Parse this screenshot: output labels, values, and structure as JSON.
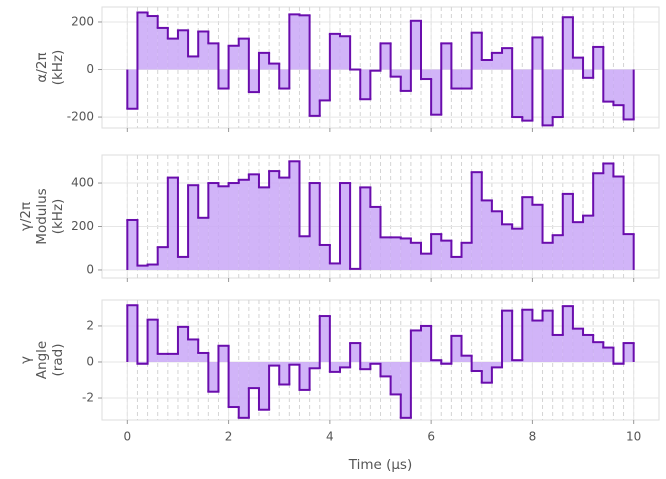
{
  "chart_data": [
    {
      "type": "step",
      "ylabel": [
        "α/2π",
        "(kHz)"
      ],
      "color": "#6a0dad",
      "fill": "#c9a7f7",
      "grid": true,
      "xlim": [
        -0.5,
        10.5
      ],
      "xticks": [
        0,
        2,
        4,
        6,
        8,
        10
      ],
      "ylim": [
        -246,
        263
      ],
      "yticks": [
        -200,
        0,
        200
      ],
      "values": [
        -165,
        240,
        225,
        175,
        130,
        165,
        55,
        160,
        110,
        -80,
        100,
        130,
        -95,
        70,
        25,
        -80,
        232,
        228,
        -195,
        -130,
        150,
        140,
        0,
        -125,
        -5,
        110,
        -30,
        -90,
        205,
        -40,
        -190,
        110,
        -80,
        -80,
        155,
        40,
        70,
        90,
        -200,
        -215,
        135,
        -235,
        -200,
        220,
        50,
        -35,
        95,
        -135,
        -150,
        -210
      ]
    },
    {
      "type": "step",
      "ylabel": [
        "γ/2π",
        "Modulus",
        "(kHz)"
      ],
      "color": "#6a0dad",
      "fill": "#c9a7f7",
      "grid": true,
      "xlim": [
        -0.5,
        10.5
      ],
      "xticks": [
        0,
        2,
        4,
        6,
        8,
        10
      ],
      "ylim": [
        -37,
        529
      ],
      "yticks": [
        0,
        200,
        400
      ],
      "values": [
        230,
        20,
        25,
        105,
        425,
        60,
        390,
        240,
        400,
        385,
        400,
        415,
        440,
        380,
        455,
        425,
        500,
        155,
        400,
        115,
        30,
        400,
        5,
        380,
        290,
        150,
        150,
        145,
        125,
        75,
        165,
        135,
        60,
        125,
        450,
        320,
        270,
        210,
        190,
        335,
        300,
        125,
        160,
        350,
        220,
        250,
        445,
        490,
        430,
        165
      ]
    },
    {
      "type": "step",
      "ylabel": [
        "γ",
        "Angle",
        "(rad)"
      ],
      "xlabel": "Time (µs)",
      "color": "#6a0dad",
      "fill": "#c9a7f7",
      "grid": true,
      "xlim": [
        -0.5,
        10.5
      ],
      "xticks": [
        0,
        2,
        4,
        6,
        8,
        10
      ],
      "ylim": [
        -3.22,
        3.44
      ],
      "yticks": [
        -2,
        0,
        2
      ],
      "values": [
        3.15,
        -0.1,
        2.35,
        0.45,
        0.45,
        1.95,
        1.25,
        0.5,
        -1.65,
        0.9,
        -2.5,
        -3.1,
        -1.45,
        -2.65,
        -0.2,
        -1.25,
        -0.15,
        -1.55,
        -0.35,
        2.55,
        -0.55,
        -0.3,
        1.05,
        -0.4,
        -0.1,
        -0.8,
        -1.8,
        -3.1,
        1.75,
        2.0,
        0.1,
        -0.1,
        1.45,
        0.35,
        -0.5,
        -1.15,
        -0.3,
        2.85,
        0.1,
        2.9,
        2.3,
        2.85,
        1.5,
        3.1,
        1.85,
        1.5,
        1.1,
        0.8,
        -0.1,
        1.05
      ]
    }
  ]
}
